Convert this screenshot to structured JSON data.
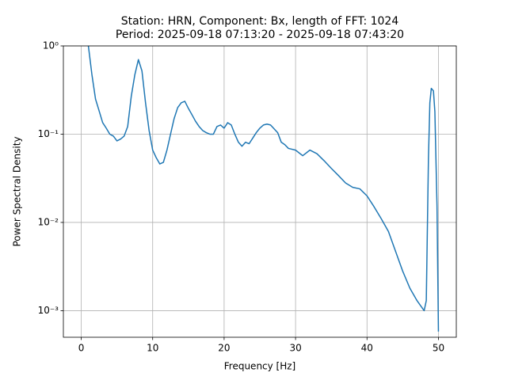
{
  "chart_data": {
    "type": "line",
    "title": "Station: HRN, Component: Bx, length of FFT: 1024",
    "subtitle": "Period: 2025-09-18 07:13:20 - 2025-09-18 07:43:20",
    "xlabel": "Frequency [Hz]",
    "ylabel": "Power Spectral Density",
    "yscale": "log",
    "grid": true,
    "xlim": [
      -2.5,
      52.5
    ],
    "xticks": [
      0,
      10,
      20,
      30,
      40,
      50
    ],
    "ylim": [
      0.0005,
      1
    ],
    "yticks": [
      {
        "value": 1,
        "label": "10⁰"
      },
      {
        "value": 0.1,
        "label": "10⁻¹"
      },
      {
        "value": 0.01,
        "label": "10⁻²"
      },
      {
        "value": 0.001,
        "label": "10⁻³"
      }
    ],
    "series": [
      {
        "color": "#1f77b4",
        "x": [
          1,
          1.5,
          2,
          2.5,
          3,
          3.5,
          4,
          4.5,
          5,
          5.5,
          6,
          6.5,
          7,
          7.5,
          8,
          8.5,
          9,
          9.5,
          10,
          10.5,
          11,
          11.5,
          12,
          12.5,
          13,
          13.5,
          14,
          14.5,
          15,
          15.5,
          16,
          16.5,
          17,
          17.5,
          18,
          18.5,
          19,
          19.5,
          20,
          20.5,
          21,
          21.5,
          22,
          22.5,
          23,
          23.5,
          24,
          24.5,
          25,
          25.5,
          26,
          26.5,
          27,
          27.5,
          28,
          28.5,
          29,
          30,
          31,
          32,
          33,
          34,
          35,
          36,
          37,
          38,
          39,
          40,
          41,
          42,
          43,
          44,
          45,
          46,
          47,
          48,
          48.3,
          48.6,
          48.8,
          49,
          49.3,
          49.5,
          49.8,
          50
        ],
        "values": [
          1,
          0.47,
          0.25,
          0.184,
          0.135,
          0.117,
          0.1,
          0.095,
          0.084,
          0.088,
          0.095,
          0.122,
          0.267,
          0.47,
          0.7,
          0.52,
          0.227,
          0.11,
          0.066,
          0.054,
          0.046,
          0.048,
          0.066,
          0.1,
          0.15,
          0.2,
          0.227,
          0.236,
          0.196,
          0.166,
          0.14,
          0.122,
          0.11,
          0.104,
          0.1,
          0.1,
          0.122,
          0.127,
          0.117,
          0.135,
          0.127,
          0.1,
          0.081,
          0.073,
          0.081,
          0.078,
          0.09,
          0.104,
          0.117,
          0.127,
          0.13,
          0.127,
          0.115,
          0.104,
          0.081,
          0.076,
          0.069,
          0.066,
          0.057,
          0.066,
          0.06,
          0.05,
          0.041,
          0.034,
          0.028,
          0.025,
          0.024,
          0.02,
          0.015,
          0.011,
          0.0079,
          0.0047,
          0.0028,
          0.0018,
          0.0013,
          0.001,
          0.0013,
          0.053,
          0.227,
          0.33,
          0.31,
          0.18,
          0.0155,
          0.00058
        ]
      }
    ]
  }
}
